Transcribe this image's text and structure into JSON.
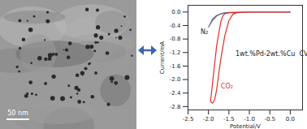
{
  "image": {
    "scale_bar": "50 nm"
  },
  "chart_data": {
    "type": "line",
    "x_label": "Potential/V",
    "y_label": "Current/mA",
    "xlim": [
      -2.5,
      0.3
    ],
    "ylim": [
      -2.9,
      0.2
    ],
    "xticks": [
      {
        "value": -2.5,
        "label": "-2.5"
      },
      {
        "value": -2.0,
        "label": "-2.0"
      },
      {
        "value": -1.5,
        "label": "-1.5"
      },
      {
        "value": -1.0,
        "label": "-1.0"
      },
      {
        "value": -0.5,
        "label": "-0.5"
      },
      {
        "value": 0,
        "label": "0.0"
      }
    ],
    "yticks": [
      {
        "value": 0,
        "label": "0.0"
      },
      {
        "value": -0.4,
        "label": "-0.4"
      },
      {
        "value": -0.8,
        "label": "-0.8"
      },
      {
        "value": -1.2,
        "label": "-1.2"
      },
      {
        "value": -1.6,
        "label": "-1.6"
      },
      {
        "value": -2.0,
        "label": "-2.0"
      },
      {
        "value": -2.4,
        "label": "-2.4"
      },
      {
        "value": -2.8,
        "label": "-2.8"
      }
    ],
    "grid": false,
    "series": [
      {
        "name": "N₂",
        "color": "#6f7590",
        "x": [
          0,
          -0.5,
          -1.0,
          -1.4,
          -1.6,
          -1.7,
          -1.8,
          -1.9,
          -2.0,
          -1.9,
          -1.8,
          -1.7,
          -1.6,
          -1.5,
          -1.0,
          -0.5,
          0
        ],
        "values": [
          0,
          0,
          0,
          -0.01,
          -0.03,
          -0.06,
          -0.12,
          -0.25,
          -0.45,
          -0.2,
          -0.1,
          -0.05,
          -0.02,
          -0.01,
          0,
          0,
          0
        ]
      },
      {
        "name": "CO₂",
        "color": "#e0302a",
        "x": [
          0,
          -0.5,
          -1.0,
          -1.3,
          -1.4,
          -1.5,
          -1.6,
          -1.7,
          -1.8,
          -1.85,
          -1.9,
          -1.95,
          -1.9,
          -1.8,
          -1.7,
          -1.65,
          -1.6,
          -1.5,
          -1.0,
          -0.5,
          0
        ],
        "values": [
          0,
          0,
          0,
          -0.02,
          -0.06,
          -0.25,
          -0.7,
          -1.4,
          -2.3,
          -2.6,
          -2.7,
          -2.65,
          -2.1,
          -1.0,
          -0.3,
          -0.12,
          -0.05,
          -0.02,
          0,
          0,
          0
        ]
      }
    ],
    "annotations": [
      {
        "text": "N₂",
        "x": -2.1,
        "y": -0.6,
        "color": "#222222"
      },
      {
        "text": "CO₂",
        "x": -1.55,
        "y": -2.2,
        "color": "#e0302a"
      },
      {
        "text": "1wt.%Pd-2wt.%Cu  CV",
        "x": -0.45,
        "y": -1.25,
        "color": "#222222"
      }
    ]
  }
}
